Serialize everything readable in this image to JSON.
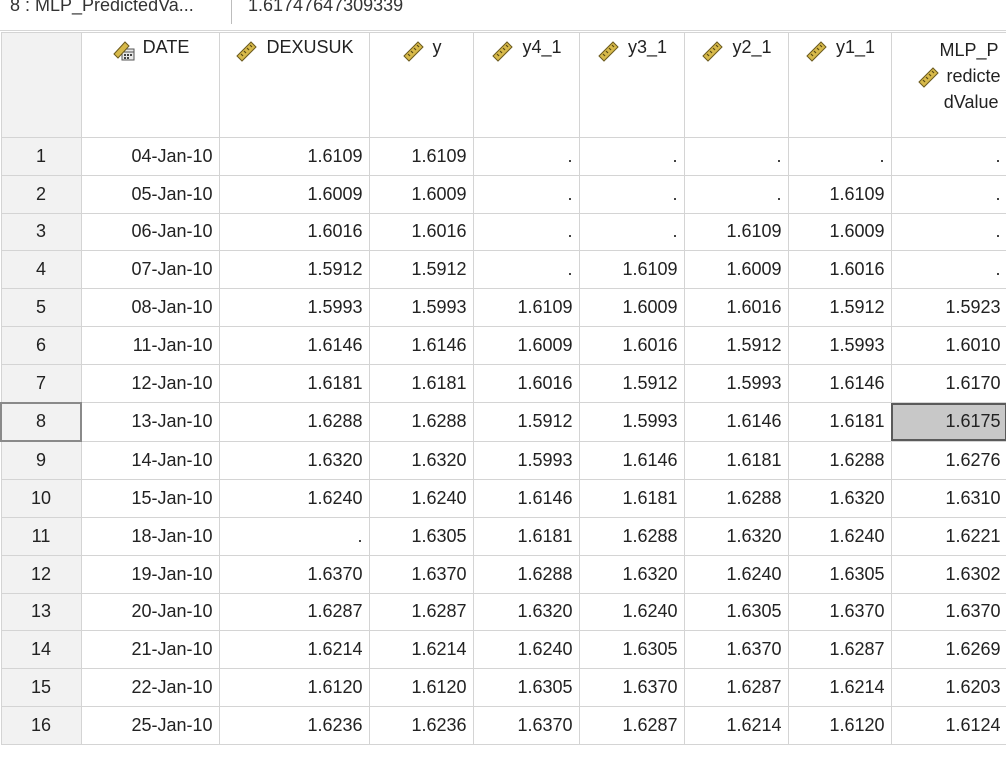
{
  "cell_editor": {
    "reference": "8 : MLP_PredictedVa...",
    "value": "1.61747647309339"
  },
  "columns": [
    {
      "key": "DATE",
      "label": "DATE",
      "icon": "date-scale-icon"
    },
    {
      "key": "DEXUSUK",
      "label": "DEXUSUK",
      "icon": "ruler-scale-icon"
    },
    {
      "key": "y",
      "label": "y",
      "icon": "ruler-scale-icon"
    },
    {
      "key": "y4_1",
      "label": "y4_1",
      "icon": "ruler-scale-icon"
    },
    {
      "key": "y3_1",
      "label": "y3_1",
      "icon": "ruler-scale-icon"
    },
    {
      "key": "y2_1",
      "label": "y2_1",
      "icon": "ruler-scale-icon"
    },
    {
      "key": "y1_1",
      "label": "y1_1",
      "icon": "ruler-scale-icon"
    },
    {
      "key": "MLP",
      "label_line1": "MLP_P",
      "label_line2": "redicte",
      "label_line3": "dValue",
      "icon": "ruler-scale-icon"
    }
  ],
  "selected": {
    "row": 8,
    "column": "MLP"
  },
  "rows": [
    {
      "num": "1",
      "cells": [
        "04-Jan-10",
        "1.6109",
        "1.6109",
        ".",
        ".",
        ".",
        ".",
        "."
      ]
    },
    {
      "num": "2",
      "cells": [
        "05-Jan-10",
        "1.6009",
        "1.6009",
        ".",
        ".",
        ".",
        "1.6109",
        "."
      ]
    },
    {
      "num": "3",
      "cells": [
        "06-Jan-10",
        "1.6016",
        "1.6016",
        ".",
        ".",
        "1.6109",
        "1.6009",
        "."
      ]
    },
    {
      "num": "4",
      "cells": [
        "07-Jan-10",
        "1.5912",
        "1.5912",
        ".",
        "1.6109",
        "1.6009",
        "1.6016",
        "."
      ]
    },
    {
      "num": "5",
      "cells": [
        "08-Jan-10",
        "1.5993",
        "1.5993",
        "1.6109",
        "1.6009",
        "1.6016",
        "1.5912",
        "1.5923"
      ]
    },
    {
      "num": "6",
      "cells": [
        "11-Jan-10",
        "1.6146",
        "1.6146",
        "1.6009",
        "1.6016",
        "1.5912",
        "1.5993",
        "1.6010"
      ]
    },
    {
      "num": "7",
      "cells": [
        "12-Jan-10",
        "1.6181",
        "1.6181",
        "1.6016",
        "1.5912",
        "1.5993",
        "1.6146",
        "1.6170"
      ]
    },
    {
      "num": "8",
      "cells": [
        "13-Jan-10",
        "1.6288",
        "1.6288",
        "1.5912",
        "1.5993",
        "1.6146",
        "1.6181",
        "1.6175"
      ]
    },
    {
      "num": "9",
      "cells": [
        "14-Jan-10",
        "1.6320",
        "1.6320",
        "1.5993",
        "1.6146",
        "1.6181",
        "1.6288",
        "1.6276"
      ]
    },
    {
      "num": "10",
      "cells": [
        "15-Jan-10",
        "1.6240",
        "1.6240",
        "1.6146",
        "1.6181",
        "1.6288",
        "1.6320",
        "1.6310"
      ]
    },
    {
      "num": "11",
      "cells": [
        "18-Jan-10",
        ".",
        "1.6305",
        "1.6181",
        "1.6288",
        "1.6320",
        "1.6240",
        "1.6221"
      ]
    },
    {
      "num": "12",
      "cells": [
        "19-Jan-10",
        "1.6370",
        "1.6370",
        "1.6288",
        "1.6320",
        "1.6240",
        "1.6305",
        "1.6302"
      ]
    },
    {
      "num": "13",
      "cells": [
        "20-Jan-10",
        "1.6287",
        "1.6287",
        "1.6320",
        "1.6240",
        "1.6305",
        "1.6370",
        "1.6370"
      ]
    },
    {
      "num": "14",
      "cells": [
        "21-Jan-10",
        "1.6214",
        "1.6214",
        "1.6240",
        "1.6305",
        "1.6370",
        "1.6287",
        "1.6269"
      ]
    },
    {
      "num": "15",
      "cells": [
        "22-Jan-10",
        "1.6120",
        "1.6120",
        "1.6305",
        "1.6370",
        "1.6287",
        "1.6214",
        "1.6203"
      ]
    },
    {
      "num": "16",
      "cells": [
        "25-Jan-10",
        "1.6236",
        "1.6236",
        "1.6370",
        "1.6287",
        "1.6214",
        "1.6120",
        "1.6124"
      ]
    }
  ],
  "colors": {
    "row_header_bg": "#f2f2f2",
    "selected_cell_bg": "#c8c8c8",
    "grid_line": "#d4d4d4"
  }
}
